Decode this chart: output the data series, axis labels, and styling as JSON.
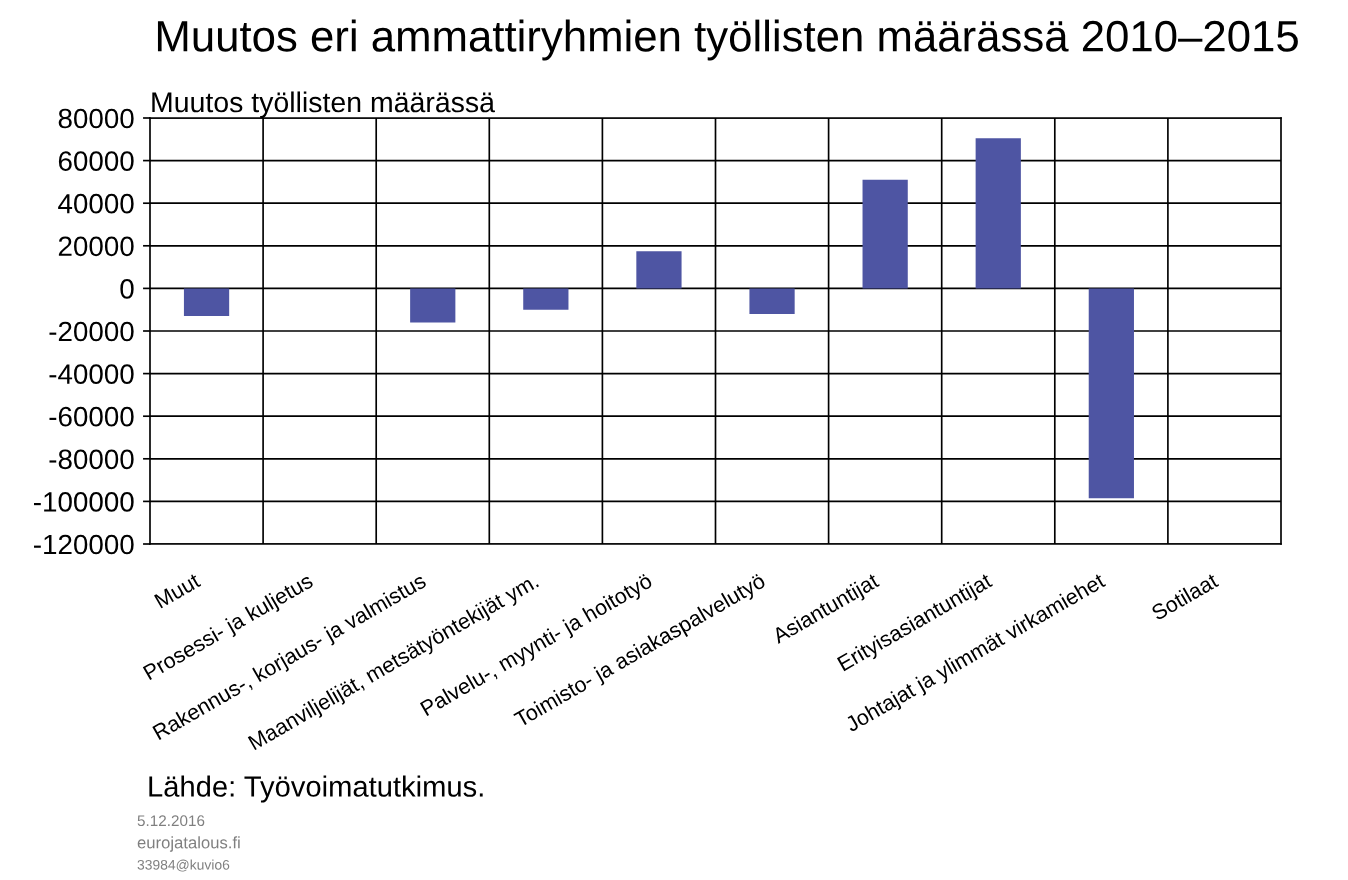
{
  "chart_data": {
    "type": "bar",
    "title": "Muutos eri ammattiryhmien työllisten määrässä 2010–2015",
    "ylabel": "Muutos työllisten määrässä",
    "categories": [
      "Muut",
      "Prosessi- ja kuljetus",
      "Rakennus-, korjaus- ja valmistus",
      "Maanviljelijät, metsätyöntekijät ym.",
      "Palvelu-, myynti- ja hoitotyö",
      "Toimisto- ja asiakaspalvelutyö",
      "Asiantuntijat",
      "Erityisasiantuntijat",
      "Johtajat ja ylimmät virkamiehet",
      "Sotilaat"
    ],
    "values": [
      -13000,
      null,
      -16000,
      -10000,
      17500,
      -12000,
      51000,
      70500,
      -98500,
      null
    ],
    "color": "#4e55a3",
    "ylim": [
      -120000,
      80000
    ],
    "yticks": [
      -120000,
      -100000,
      -80000,
      -60000,
      -40000,
      -20000,
      0,
      20000,
      40000,
      60000,
      80000
    ],
    "grid": true,
    "legend": false,
    "annotations": [
      "Lähde: Työvoimatutkimus.",
      "5.12.2016",
      "eurojatalous.fi",
      "33984@kuvio6"
    ]
  }
}
